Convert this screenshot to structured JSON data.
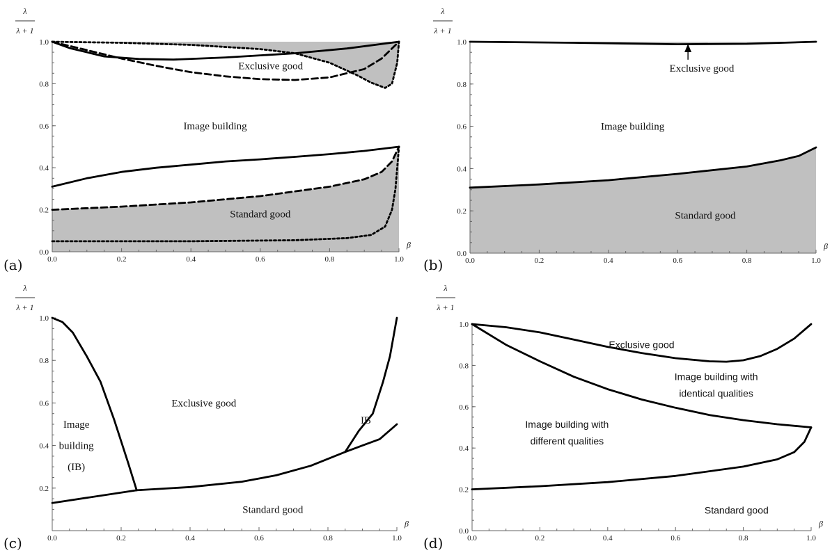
{
  "chart_data": [
    {
      "panel_label": "(a)",
      "type": "line",
      "axis_top_label": "λ",
      "axis_bottom_label": "λ + 1",
      "x_axis_symbol": "β",
      "xlim": [
        0,
        1
      ],
      "ylim": [
        0,
        1
      ],
      "xticks": [
        "0.0",
        "0.2",
        "0.4",
        "0.6",
        "0.8",
        "1.0"
      ],
      "yticks": [
        "0.0",
        "0.2",
        "0.4",
        "0.6",
        "0.8",
        "1.0"
      ],
      "fill_color": "#c0c0c0",
      "fills": [
        {
          "between": "top_dotted_to_one",
          "lower": [
            [
              0,
              1.0
            ],
            [
              0.2,
              0.995
            ],
            [
              0.4,
              0.985
            ],
            [
              0.6,
              0.965
            ],
            [
              0.7,
              0.945
            ],
            [
              0.8,
              0.9
            ],
            [
              0.88,
              0.84
            ],
            [
              0.92,
              0.805
            ],
            [
              0.96,
              0.78
            ],
            [
              0.98,
              0.8
            ],
            [
              0.995,
              0.9
            ],
            [
              1.0,
              1.0
            ]
          ]
        },
        {
          "between": "zero_to_bottom_dashed",
          "upper": [
            [
              0,
              0.2
            ],
            [
              0.2,
              0.215
            ],
            [
              0.4,
              0.235
            ],
            [
              0.6,
              0.265
            ],
            [
              0.8,
              0.31
            ],
            [
              0.9,
              0.345
            ],
            [
              0.95,
              0.38
            ],
            [
              0.98,
              0.43
            ],
            [
              1.0,
              0.5
            ]
          ]
        }
      ],
      "series": [
        {
          "style": "solid",
          "values": [
            [
              0,
              1.0
            ],
            [
              0.05,
              0.97
            ],
            [
              0.15,
              0.93
            ],
            [
              0.25,
              0.918
            ],
            [
              0.35,
              0.915
            ],
            [
              0.5,
              0.925
            ],
            [
              0.7,
              0.945
            ],
            [
              0.85,
              0.968
            ],
            [
              1.0,
              1.0
            ]
          ]
        },
        {
          "style": "dashed",
          "values": [
            [
              0,
              1.0
            ],
            [
              0.1,
              0.96
            ],
            [
              0.2,
              0.92
            ],
            [
              0.3,
              0.885
            ],
            [
              0.4,
              0.855
            ],
            [
              0.5,
              0.835
            ],
            [
              0.6,
              0.822
            ],
            [
              0.7,
              0.818
            ],
            [
              0.8,
              0.83
            ],
            [
              0.9,
              0.87
            ],
            [
              0.95,
              0.92
            ],
            [
              1.0,
              1.0
            ]
          ]
        },
        {
          "style": "dotted",
          "values": [
            [
              0,
              1.0
            ],
            [
              0.2,
              0.995
            ],
            [
              0.4,
              0.985
            ],
            [
              0.6,
              0.965
            ],
            [
              0.7,
              0.945
            ],
            [
              0.8,
              0.9
            ],
            [
              0.88,
              0.84
            ],
            [
              0.92,
              0.805
            ],
            [
              0.96,
              0.78
            ],
            [
              0.98,
              0.8
            ],
            [
              0.995,
              0.9
            ],
            [
              1.0,
              1.0
            ]
          ]
        },
        {
          "style": "solid",
          "values": [
            [
              0,
              0.31
            ],
            [
              0.1,
              0.35
            ],
            [
              0.2,
              0.38
            ],
            [
              0.3,
              0.4
            ],
            [
              0.4,
              0.415
            ],
            [
              0.5,
              0.43
            ],
            [
              0.6,
              0.44
            ],
            [
              0.7,
              0.452
            ],
            [
              0.8,
              0.465
            ],
            [
              0.9,
              0.48
            ],
            [
              1.0,
              0.5
            ]
          ]
        },
        {
          "style": "dashed",
          "values": [
            [
              0,
              0.2
            ],
            [
              0.2,
              0.215
            ],
            [
              0.4,
              0.235
            ],
            [
              0.6,
              0.265
            ],
            [
              0.8,
              0.31
            ],
            [
              0.9,
              0.345
            ],
            [
              0.95,
              0.38
            ],
            [
              0.98,
              0.43
            ],
            [
              1.0,
              0.5
            ]
          ]
        },
        {
          "style": "dotted",
          "values": [
            [
              0,
              0.05
            ],
            [
              0.4,
              0.05
            ],
            [
              0.7,
              0.055
            ],
            [
              0.85,
              0.065
            ],
            [
              0.92,
              0.08
            ],
            [
              0.96,
              0.12
            ],
            [
              0.98,
              0.2
            ],
            [
              0.99,
              0.3
            ],
            [
              1.0,
              0.5
            ]
          ]
        }
      ],
      "annotations": [
        {
          "text": "Exclusive good",
          "x": 0.63,
          "y": 0.885,
          "style": "serif"
        },
        {
          "text": "Image building",
          "x": 0.47,
          "y": 0.6,
          "style": "serif"
        },
        {
          "text": "Standard good",
          "x": 0.6,
          "y": 0.18,
          "style": "serif"
        }
      ]
    },
    {
      "panel_label": "(b)",
      "type": "line",
      "axis_top_label": "λ",
      "axis_bottom_label": "λ + 1",
      "x_axis_symbol": "β",
      "xlim": [
        0,
        1
      ],
      "ylim": [
        0,
        1
      ],
      "xticks": [
        "0.0",
        "0.2",
        "0.4",
        "0.6",
        "0.8",
        "1.0"
      ],
      "yticks": [
        "0.0",
        "0.2",
        "0.4",
        "0.6",
        "0.8",
        "1.0"
      ],
      "fill_color": "#c0c0c0",
      "fills": [
        {
          "between": "thin_sliver_to_one",
          "lower": [
            [
              0,
              1.0
            ],
            [
              0.3,
              0.995
            ],
            [
              0.6,
              0.988
            ],
            [
              0.8,
              0.99
            ],
            [
              1.0,
              1.0
            ]
          ]
        },
        {
          "between": "zero_to_curve",
          "upper": [
            [
              0,
              0.31
            ],
            [
              0.2,
              0.325
            ],
            [
              0.4,
              0.345
            ],
            [
              0.6,
              0.375
            ],
            [
              0.8,
              0.41
            ],
            [
              0.9,
              0.44
            ],
            [
              0.95,
              0.46
            ],
            [
              1.0,
              0.5
            ]
          ]
        }
      ],
      "series": [
        {
          "style": "solid",
          "values": [
            [
              0,
              1.0
            ],
            [
              0.3,
              0.995
            ],
            [
              0.6,
              0.988
            ],
            [
              0.8,
              0.99
            ],
            [
              1.0,
              1.0
            ]
          ]
        },
        {
          "style": "solid",
          "values": [
            [
              0,
              0.31
            ],
            [
              0.2,
              0.325
            ],
            [
              0.4,
              0.345
            ],
            [
              0.6,
              0.375
            ],
            [
              0.8,
              0.41
            ],
            [
              0.9,
              0.44
            ],
            [
              0.95,
              0.46
            ],
            [
              1.0,
              0.5
            ]
          ]
        }
      ],
      "arrow": {
        "from": [
          0.63,
          0.915
        ],
        "to": [
          0.63,
          0.99
        ]
      },
      "annotations": [
        {
          "text": "Exclusive good",
          "x": 0.67,
          "y": 0.875,
          "style": "serif"
        },
        {
          "text": "Image building",
          "x": 0.47,
          "y": 0.6,
          "style": "serif"
        },
        {
          "text": "Standard good",
          "x": 0.68,
          "y": 0.18,
          "style": "serif"
        }
      ]
    },
    {
      "panel_label": "(c)",
      "type": "line",
      "axis_top_label": "λ",
      "axis_bottom_label": "λ + 1",
      "x_axis_symbol": "β",
      "xlim": [
        0,
        1
      ],
      "ylim": [
        0,
        1
      ],
      "xticks": [
        "0.0",
        "0.2",
        "0.4",
        "0.6",
        "0.8",
        "1.0"
      ],
      "yticks": [
        "0.2",
        "0.4",
        "0.6",
        "0.8",
        "1.0"
      ],
      "series": [
        {
          "style": "solid",
          "values": [
            [
              0,
              1.0
            ],
            [
              0.03,
              0.98
            ],
            [
              0.06,
              0.93
            ],
            [
              0.1,
              0.82
            ],
            [
              0.14,
              0.7
            ],
            [
              0.18,
              0.52
            ],
            [
              0.22,
              0.32
            ],
            [
              0.245,
              0.19
            ]
          ]
        },
        {
          "style": "solid",
          "values": [
            [
              0,
              0.13
            ],
            [
              0.245,
              0.19
            ],
            [
              0.4,
              0.205
            ],
            [
              0.55,
              0.23
            ],
            [
              0.65,
              0.26
            ],
            [
              0.75,
              0.305
            ],
            [
              0.85,
              0.37
            ],
            [
              0.9,
              0.4
            ],
            [
              0.95,
              0.43
            ],
            [
              1.0,
              0.5
            ]
          ]
        },
        {
          "style": "solid",
          "values": [
            [
              0.85,
              0.37
            ],
            [
              0.89,
              0.47
            ],
            [
              0.93,
              0.55
            ],
            [
              0.96,
              0.7
            ],
            [
              0.98,
              0.82
            ],
            [
              1.0,
              1.0
            ]
          ]
        }
      ],
      "annotations": [
        {
          "text": "Exclusive good",
          "x": 0.44,
          "y": 0.6,
          "style": "serif"
        },
        {
          "text": "Image",
          "x": 0.07,
          "y": 0.5,
          "style": "serif"
        },
        {
          "text": "building",
          "x": 0.07,
          "y": 0.4,
          "style": "serif"
        },
        {
          "text": "(IB)",
          "x": 0.07,
          "y": 0.3,
          "style": "serif"
        },
        {
          "text": "IB",
          "x": 0.91,
          "y": 0.52,
          "style": "serif"
        },
        {
          "text": "Standard good",
          "x": 0.64,
          "y": 0.1,
          "style": "serif"
        }
      ]
    },
    {
      "panel_label": "(d)",
      "type": "line",
      "axis_top_label": "λ",
      "axis_bottom_label": "λ + 1",
      "x_axis_symbol": "β",
      "xlim": [
        0,
        1
      ],
      "ylim": [
        0,
        1
      ],
      "xticks": [
        "0.0",
        "0.2",
        "0.4",
        "0.6",
        "0.8",
        "1.0"
      ],
      "yticks": [
        "0.0",
        "0.2",
        "0.4",
        "0.6",
        "0.8",
        "1.0"
      ],
      "series": [
        {
          "style": "solid",
          "values": [
            [
              0,
              1.0
            ],
            [
              0.1,
              0.985
            ],
            [
              0.2,
              0.96
            ],
            [
              0.3,
              0.925
            ],
            [
              0.4,
              0.89
            ],
            [
              0.5,
              0.86
            ],
            [
              0.6,
              0.835
            ],
            [
              0.7,
              0.82
            ],
            [
              0.75,
              0.818
            ],
            [
              0.8,
              0.825
            ],
            [
              0.85,
              0.845
            ],
            [
              0.9,
              0.88
            ],
            [
              0.95,
              0.93
            ],
            [
              1.0,
              1.0
            ]
          ]
        },
        {
          "style": "solid",
          "values": [
            [
              0,
              1.0
            ],
            [
              0.1,
              0.9
            ],
            [
              0.2,
              0.82
            ],
            [
              0.3,
              0.745
            ],
            [
              0.4,
              0.685
            ],
            [
              0.5,
              0.635
            ],
            [
              0.6,
              0.595
            ],
            [
              0.7,
              0.56
            ],
            [
              0.8,
              0.535
            ],
            [
              0.9,
              0.515
            ],
            [
              1.0,
              0.5
            ]
          ]
        },
        {
          "style": "solid",
          "values": [
            [
              0,
              0.2
            ],
            [
              0.2,
              0.215
            ],
            [
              0.4,
              0.235
            ],
            [
              0.6,
              0.265
            ],
            [
              0.8,
              0.31
            ],
            [
              0.9,
              0.345
            ],
            [
              0.95,
              0.38
            ],
            [
              0.98,
              0.43
            ],
            [
              1.0,
              0.5
            ]
          ]
        }
      ],
      "annotations": [
        {
          "text": "Exclusive good",
          "x": 0.5,
          "y": 0.9,
          "style": "sans"
        },
        {
          "text": "Image building with",
          "x": 0.72,
          "y": 0.745,
          "style": "sans"
        },
        {
          "text": "identical qualities",
          "x": 0.72,
          "y": 0.665,
          "style": "sans"
        },
        {
          "text": "Image building with",
          "x": 0.28,
          "y": 0.515,
          "style": "sans"
        },
        {
          "text": "different qualities",
          "x": 0.28,
          "y": 0.435,
          "style": "sans"
        },
        {
          "text": "Standard good",
          "x": 0.78,
          "y": 0.1,
          "style": "sans"
        }
      ]
    }
  ]
}
